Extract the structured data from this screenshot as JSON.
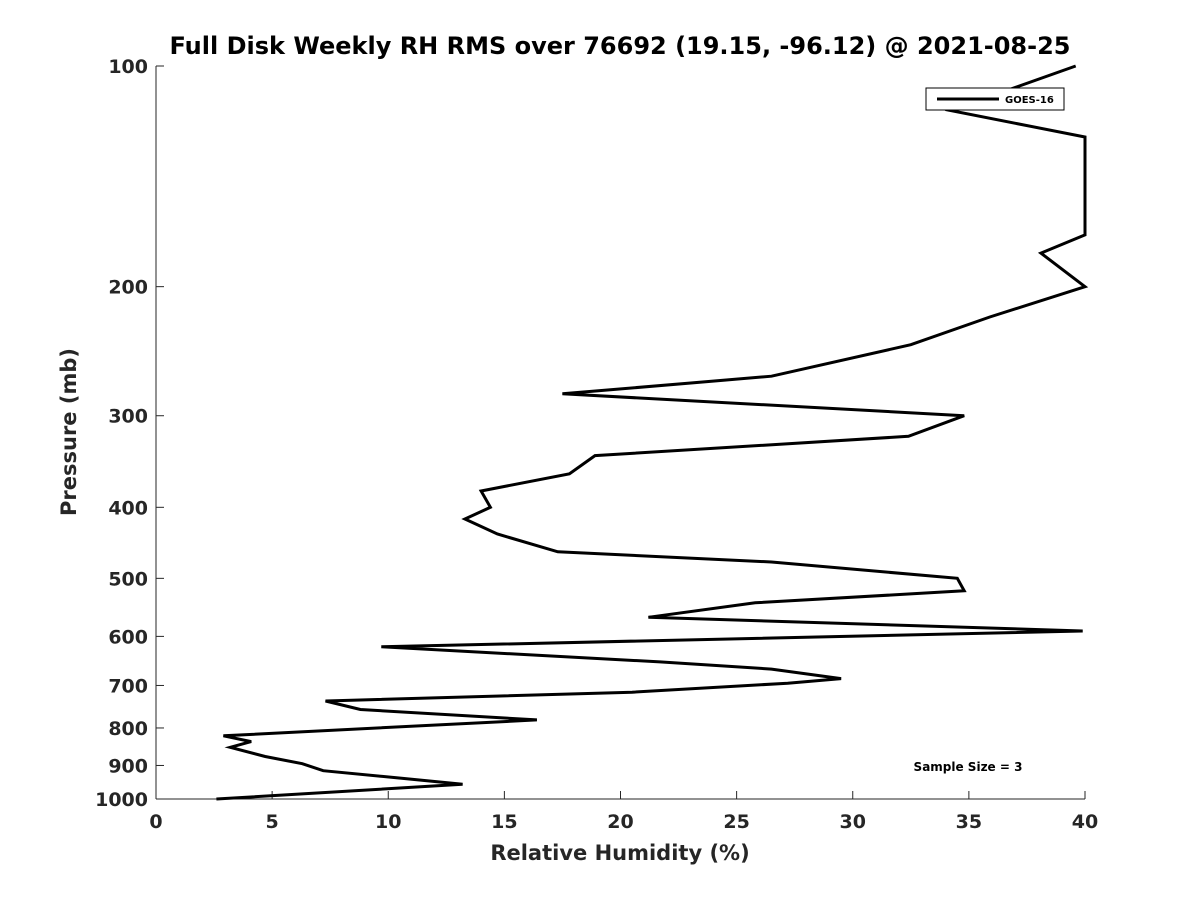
{
  "chart_data": {
    "type": "line",
    "title": "Full Disk Weekly RH RMS over 76692 (19.15, -96.12) @ 2021-08-25",
    "xlabel": "Relative Humidity (%)",
    "ylabel": "Pressure (mb)",
    "xlim": [
      0,
      40
    ],
    "ylim": [
      100,
      1000
    ],
    "yscale": "log",
    "y_reversed": true,
    "x_ticks": [
      0,
      5,
      10,
      15,
      20,
      25,
      30,
      35,
      40
    ],
    "y_ticks": [
      100,
      200,
      300,
      400,
      500,
      600,
      700,
      800,
      900,
      1000
    ],
    "grid": false,
    "legend_position": "top-right",
    "line_color": "#000000",
    "annotation": "Sample Size = 3",
    "series": [
      {
        "name": "GOES-16",
        "points": [
          {
            "x": 39.6,
            "y": 100
          },
          {
            "x": 34.2,
            "y": 115
          },
          {
            "x": 40.0,
            "y": 125
          },
          {
            "x": 40.0,
            "y": 170
          },
          {
            "x": 38.1,
            "y": 180
          },
          {
            "x": 40.0,
            "y": 200
          },
          {
            "x": 35.9,
            "y": 220
          },
          {
            "x": 32.5,
            "y": 240
          },
          {
            "x": 26.5,
            "y": 265
          },
          {
            "x": 17.5,
            "y": 280
          },
          {
            "x": 34.8,
            "y": 300
          },
          {
            "x": 32.4,
            "y": 320
          },
          {
            "x": 18.9,
            "y": 340
          },
          {
            "x": 17.8,
            "y": 360
          },
          {
            "x": 14.0,
            "y": 380
          },
          {
            "x": 14.4,
            "y": 400
          },
          {
            "x": 13.3,
            "y": 415
          },
          {
            "x": 14.7,
            "y": 435
          },
          {
            "x": 17.3,
            "y": 460
          },
          {
            "x": 26.5,
            "y": 475
          },
          {
            "x": 34.5,
            "y": 500
          },
          {
            "x": 34.8,
            "y": 520
          },
          {
            "x": 25.8,
            "y": 540
          },
          {
            "x": 21.2,
            "y": 565
          },
          {
            "x": 39.9,
            "y": 590
          },
          {
            "x": 9.7,
            "y": 620
          },
          {
            "x": 21.7,
            "y": 650
          },
          {
            "x": 26.5,
            "y": 665
          },
          {
            "x": 29.5,
            "y": 685
          },
          {
            "x": 27.2,
            "y": 695
          },
          {
            "x": 20.5,
            "y": 715
          },
          {
            "x": 7.3,
            "y": 735
          },
          {
            "x": 8.8,
            "y": 755
          },
          {
            "x": 16.4,
            "y": 780
          },
          {
            "x": 2.9,
            "y": 820
          },
          {
            "x": 4.1,
            "y": 835
          },
          {
            "x": 3.2,
            "y": 850
          },
          {
            "x": 4.7,
            "y": 875
          },
          {
            "x": 6.3,
            "y": 895
          },
          {
            "x": 7.2,
            "y": 915
          },
          {
            "x": 10.3,
            "y": 935
          },
          {
            "x": 13.2,
            "y": 955
          },
          {
            "x": 2.6,
            "y": 1000
          }
        ]
      }
    ]
  }
}
